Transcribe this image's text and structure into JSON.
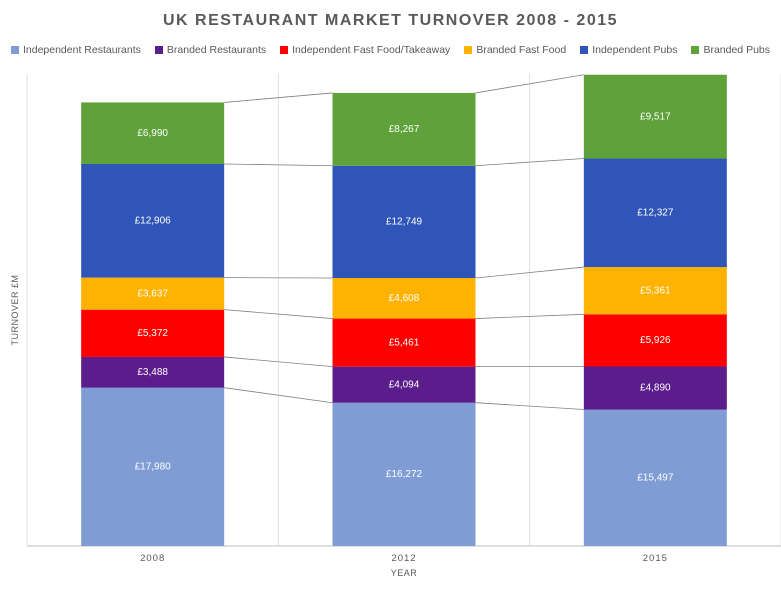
{
  "title": "UK RESTAURANT MARKET TURNOVER 2008 - 2015",
  "chart_data": {
    "type": "bar",
    "stacked": true,
    "title": "UK RESTAURANT MARKET TURNOVER 2008 - 2015",
    "xlabel": "YEAR",
    "ylabel": "TURNOVER £M",
    "categories": [
      "2008",
      "2012",
      "2015"
    ],
    "series": [
      {
        "name": "Independent Restaurants",
        "color": "#7F9CD5",
        "values": [
          17980,
          16272,
          15497
        ],
        "labels": [
          "£17,980",
          "£16,272",
          "£15,497"
        ]
      },
      {
        "name": "Branded Restaurants",
        "color": "#5B1C8C",
        "values": [
          3488,
          4094,
          4890
        ],
        "labels": [
          "£3,488",
          "£4,094",
          "£4,890"
        ]
      },
      {
        "name": "Independent Fast Food/Takeaway",
        "color": "#FF0000",
        "values": [
          5372,
          5461,
          5926
        ],
        "labels": [
          "£5,372",
          "£5,461",
          "£5,926"
        ]
      },
      {
        "name": "Branded Fast Food",
        "color": "#FFB300",
        "values": [
          3637,
          4608,
          5361
        ],
        "labels": [
          "£3,637",
          "£4,608",
          "£5,361"
        ]
      },
      {
        "name": "Independent Pubs",
        "color": "#2F55B8",
        "values": [
          12906,
          12749,
          12327
        ],
        "labels": [
          "£12,906",
          "£12,749",
          "£12,327"
        ]
      },
      {
        "name": "Branded Pubs",
        "color": "#5FA23A",
        "values": [
          6990,
          8267,
          9517
        ],
        "labels": [
          "£6,990",
          "£8,267",
          "£9,517"
        ]
      }
    ],
    "ylim": [
      0,
      53600
    ],
    "grid": true,
    "legend": "top",
    "series_lines": true
  }
}
